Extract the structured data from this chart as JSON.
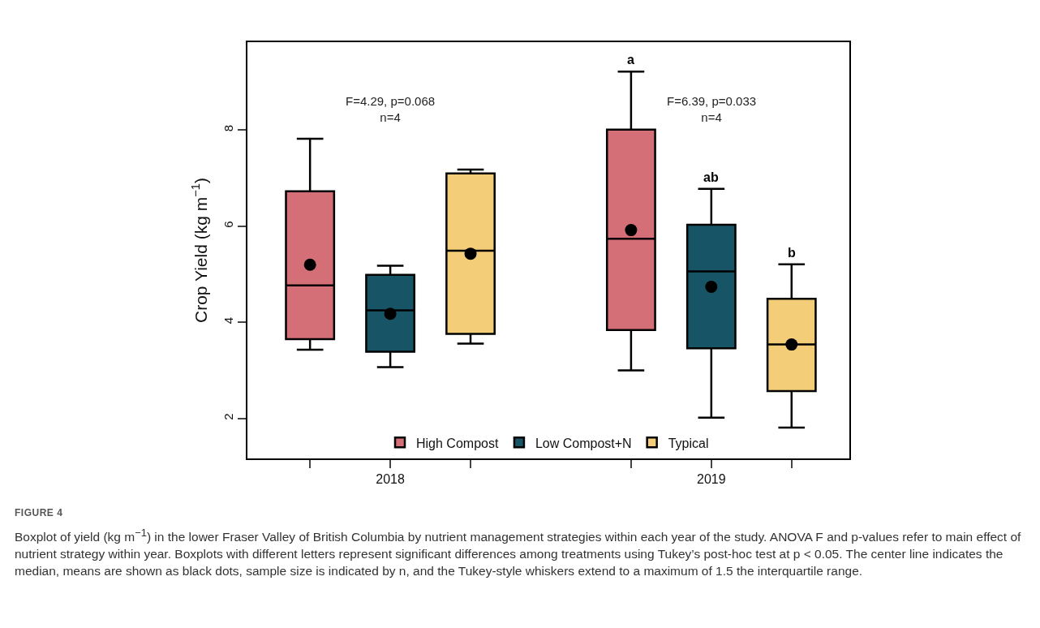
{
  "chart_data": {
    "type": "box",
    "ylabel": "Crop Yield (kg m$^{−1}$)",
    "categories": [
      "2018",
      "2019"
    ],
    "series": [
      {
        "name": "High Compost",
        "color": "#d46f77",
        "boxes": [
          {
            "low": 3.43,
            "q1": 3.65,
            "median": 4.77,
            "q3": 6.73,
            "high": 7.82,
            "mean": 5.2
          },
          {
            "low": 3.0,
            "q1": 3.84,
            "median": 5.74,
            "q3": 8.01,
            "high": 9.22,
            "mean": 5.92
          }
        ]
      },
      {
        "name": "Low Compost+N",
        "color": "#175466",
        "boxes": [
          {
            "low": 3.07,
            "q1": 3.39,
            "median": 4.25,
            "q3": 4.99,
            "high": 5.18,
            "mean": 4.18
          },
          {
            "low": 2.02,
            "q1": 3.46,
            "median": 5.06,
            "q3": 6.03,
            "high": 6.78,
            "mean": 4.74
          }
        ]
      },
      {
        "name": "Typical",
        "color": "#f4cd78",
        "boxes": [
          {
            "low": 3.56,
            "q1": 3.76,
            "median": 5.49,
            "q3": 7.1,
            "high": 7.18,
            "mean": 5.43
          },
          {
            "low": 1.81,
            "q1": 2.57,
            "median": 3.54,
            "q3": 4.49,
            "high": 5.21,
            "mean": 3.54
          }
        ]
      }
    ],
    "ylim": [
      1.17,
      9.83
    ],
    "yticks": [
      2,
      4,
      6,
      8
    ],
    "grid": false,
    "legend": "bottom",
    "annotations": [
      "F=4.29, p=0.068\nn=4",
      "F=6.39, p=0.033\nn=4",
      "a",
      "ab",
      "b",
      "FIGURE 4",
      "Boxplot of yield (kg m$^{−1}$) in the lower Fraser Valley of British Columbia by nutrient management strategies within each year of the study. ANOVA F and p-values refer to main effect of nutrient strategy within year. Boxplots with different letters represent significant differences among treatments using Tukey’s post-hoc test at p < 0.05. The center line indicates the median, means are shown as black dots, sample size is indicated by n, and the Tukey-style whiskers extend to a maximum of 1.5 the interquartile range."
    ]
  }
}
